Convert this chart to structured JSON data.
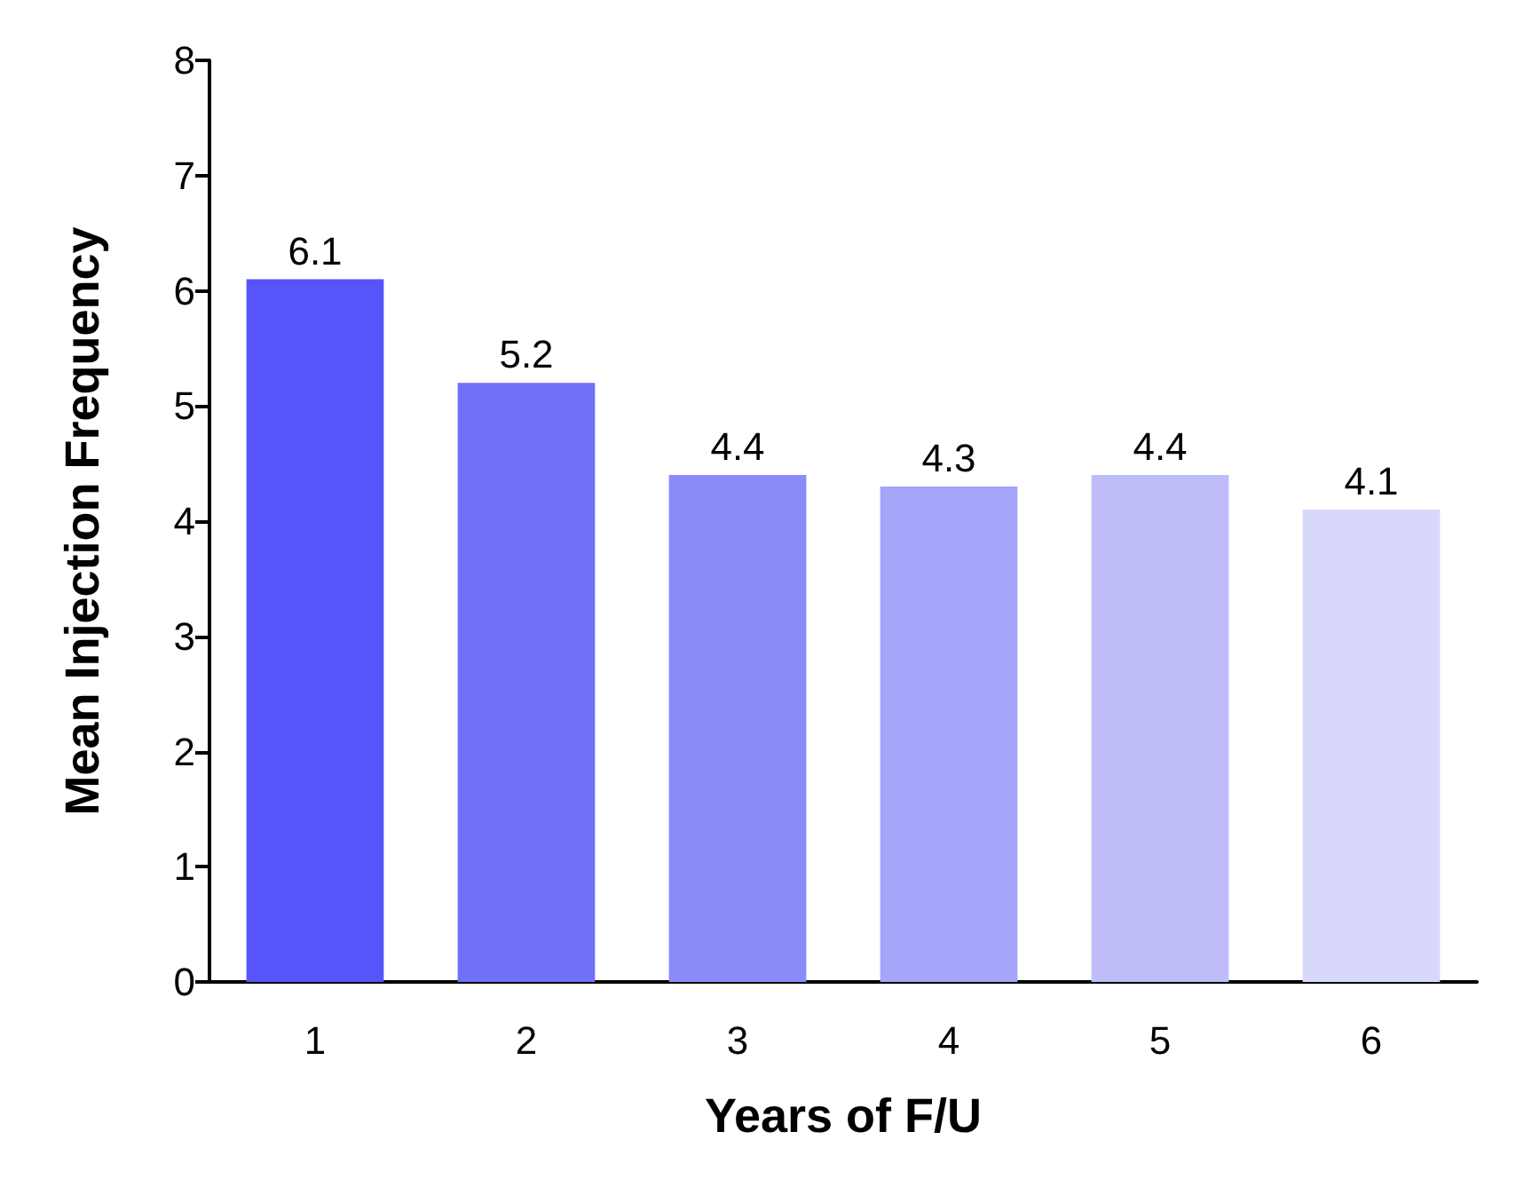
{
  "chart_data": {
    "type": "bar",
    "xlabel": "Years of F/U",
    "ylabel": "Mean Injection Frequency",
    "categories": [
      "1",
      "2",
      "3",
      "4",
      "5",
      "6"
    ],
    "values": [
      6.1,
      5.2,
      4.4,
      4.3,
      4.4,
      4.1
    ],
    "colors": [
      "#5555fa",
      "#7070f8",
      "#8a8af8",
      "#a4a4f9",
      "#bebdfa",
      "#d8d8fb"
    ],
    "ylim": [
      0,
      8
    ],
    "yticks": [
      0,
      1,
      2,
      3,
      4,
      5,
      6,
      7,
      8
    ],
    "grid": false,
    "data_labels": true
  }
}
